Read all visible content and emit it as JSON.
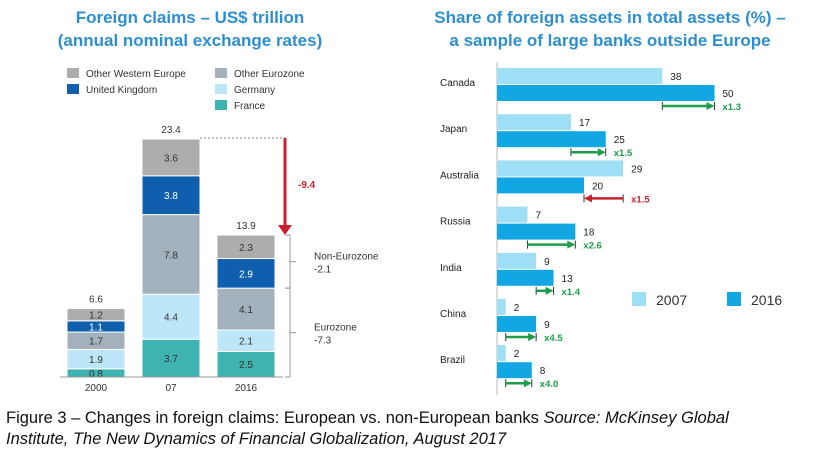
{
  "left_title_line1": "Foreign claims – US$ trillion",
  "left_title_line2": "(annual nominal exchange rates)",
  "right_title_line1": "Share of foreign assets in total assets (%) –",
  "right_title_line2": "a sample of large banks outside Europe",
  "caption_main": "Figure 3 – Changes in foreign claims: European vs. non-European banks",
  "caption_source_line1": "Source: McKinsey Global",
  "caption_source_line2": "Institute, The New Dynamics of Financial Globalization, August 2017",
  "colors": {
    "other_western_europe": "#adadad",
    "united_kingdom": "#0f5fae",
    "other_eurozone": "#a3b1bc",
    "germany": "#bde6f8",
    "france": "#3fb3b0",
    "y2007": "#9edff5",
    "y2016": "#12a7e3",
    "arrow_down": "#c8202f",
    "arrow_up": "#1e9e4a",
    "title": "#2e8fcf"
  },
  "chart_data": [
    {
      "type": "bar",
      "stacked": true,
      "categories": [
        "2000",
        "07",
        "2016"
      ],
      "series": [
        {
          "name": "France",
          "values": [
            0.8,
            3.7,
            2.5
          ]
        },
        {
          "name": "Germany",
          "values": [
            1.9,
            4.4,
            2.1
          ]
        },
        {
          "name": "Other Eurozone",
          "values": [
            1.7,
            7.8,
            4.1
          ]
        },
        {
          "name": "United Kingdom",
          "values": [
            1.1,
            3.8,
            2.9
          ]
        },
        {
          "name": "Other Western Europe",
          "values": [
            1.2,
            3.6,
            2.3
          ]
        }
      ],
      "totals": [
        "6.6",
        "23.4",
        "13.9"
      ],
      "legend_order": [
        "Other Western Europe",
        "Other Eurozone",
        "United Kingdom",
        "Germany",
        "France"
      ],
      "change_label": "-9.4",
      "brackets": [
        {
          "label": "Non-Eurozone",
          "value": "-2.1"
        },
        {
          "label": "Eurozone",
          "value": "-7.3"
        }
      ],
      "ylim": [
        0,
        24
      ]
    },
    {
      "type": "bar",
      "orientation": "horizontal",
      "categories": [
        "Canada",
        "Japan",
        "Australia",
        "Russia",
        "India",
        "China",
        "Brazil"
      ],
      "series": [
        {
          "name": "2007",
          "values": [
            38,
            17,
            29,
            7,
            9,
            2,
            2
          ]
        },
        {
          "name": "2016",
          "values": [
            50,
            25,
            20,
            18,
            13,
            9,
            8
          ]
        }
      ],
      "multipliers": [
        "x1.3",
        "x1.5",
        "x1.5",
        "x2.6",
        "x1.4",
        "x4.5",
        "x4.0"
      ],
      "direction": [
        "up",
        "up",
        "down",
        "up",
        "up",
        "up",
        "up"
      ],
      "xlim": [
        0,
        50
      ],
      "legend": "bottom-right"
    }
  ]
}
